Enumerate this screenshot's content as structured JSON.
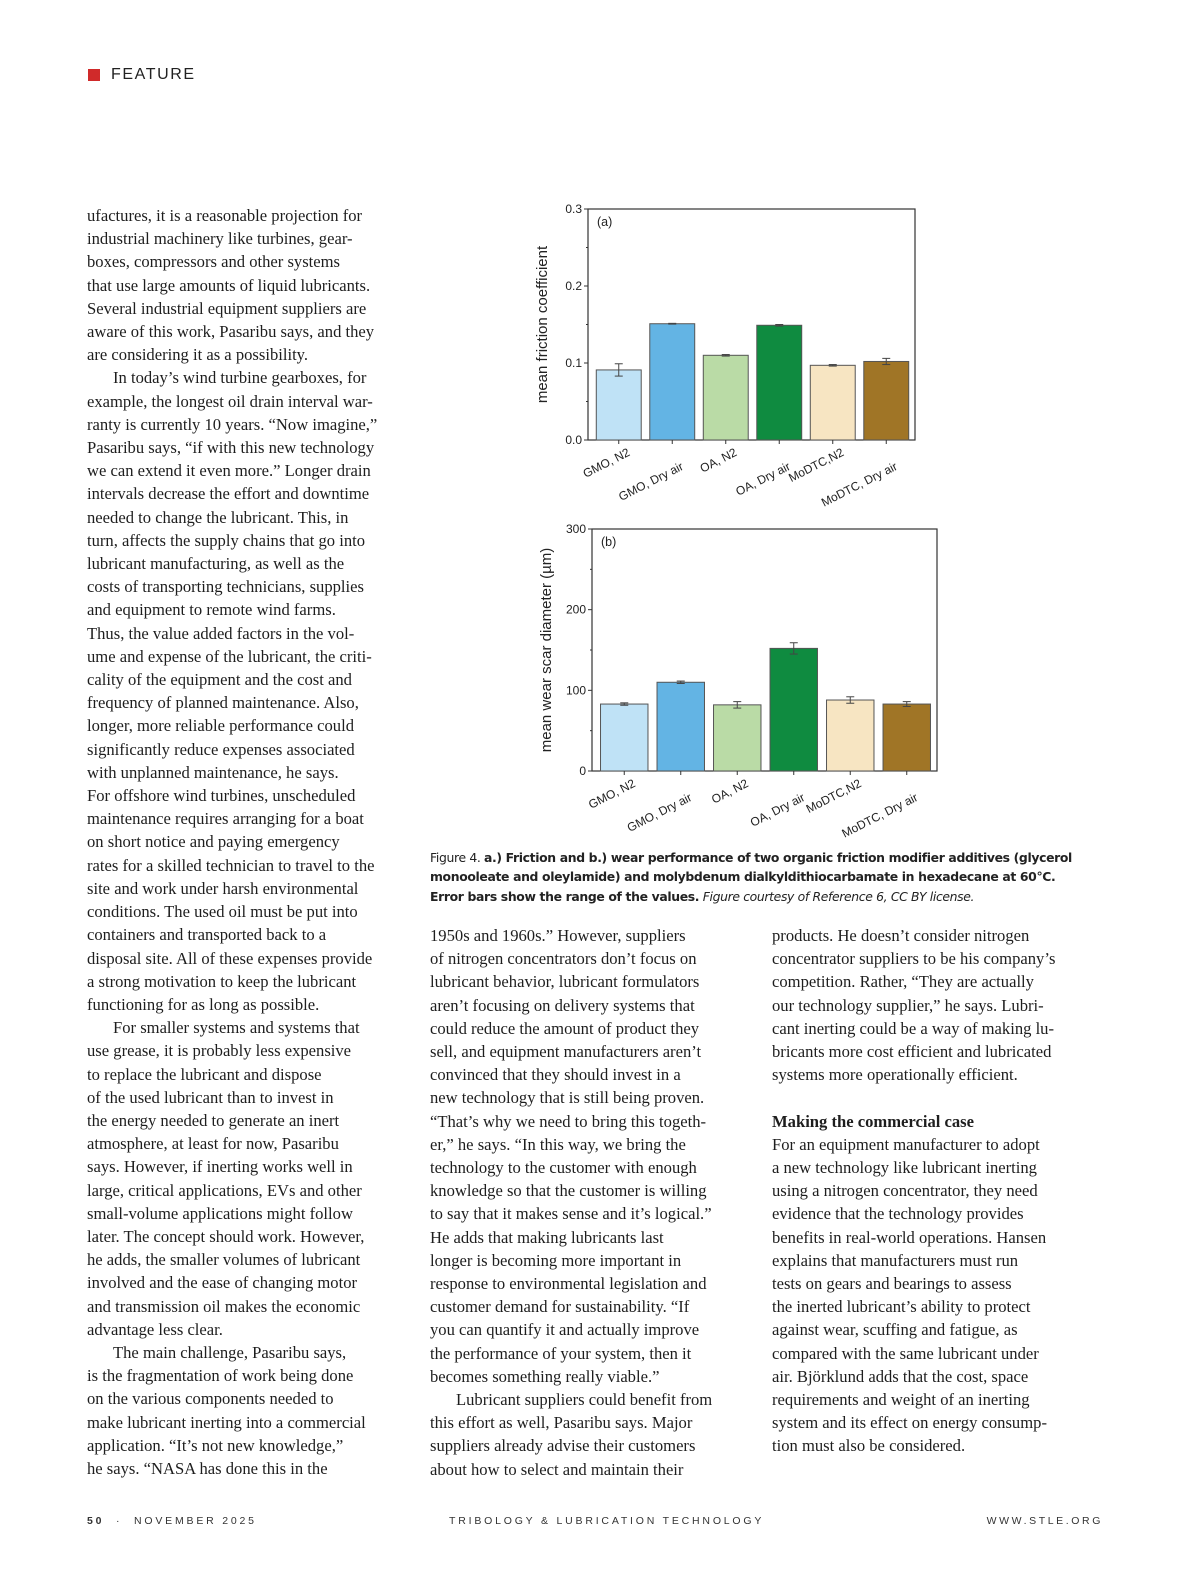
{
  "header": {
    "section": "FEATURE",
    "accent_color": "#d02a2a"
  },
  "columns": [
    {
      "blocks": [
        {
          "indent": false,
          "lines": [
            "ufactures, it is a reasonable projection for",
            "industrial machinery like turbines, gear-",
            "boxes, compressors and other systems",
            "that use large amounts of liquid lubricants.",
            "Several industrial equipment suppliers are",
            "aware of this work, Pasaribu says, and they",
            "are considering it as a possibility."
          ]
        },
        {
          "indent": true,
          "lines": [
            "In today’s wind turbine gearboxes, for",
            "example, the longest oil drain interval war-",
            "ranty is currently 10 years. “Now imagine,”",
            "Pasaribu says, “if with this new technology",
            "we can extend it even more.” Longer drain",
            "intervals decrease the effort and downtime",
            "needed to change the lubricant. This, in",
            "turn, affects the supply chains that go into",
            "lubricant manufacturing, as well as the",
            "costs of transporting technicians, supplies",
            "and equipment to remote wind farms.",
            "Thus, the value added factors in the vol-",
            "ume and expense of the lubricant, the criti-",
            "cality of the equipment and the cost and",
            "frequency of planned maintenance. Also,",
            "longer, more reliable performance could",
            "significantly reduce expenses associated",
            "with unplanned maintenance, he says.",
            "For offshore wind turbines, unscheduled",
            "maintenance requires arranging for a boat",
            "on short notice and paying emergency",
            "rates for a skilled technician to travel to the",
            "site and work under harsh environmental",
            "conditions. The used oil must be put into",
            "containers and transported back to a",
            "disposal site. All of these expenses provide",
            "a strong motivation to keep the lubricant",
            "functioning for as long as possible."
          ]
        },
        {
          "indent": true,
          "lines": [
            "For smaller systems and systems that",
            "use grease, it is probably less expensive",
            "to replace the lubricant and dispose",
            "of the used lubricant than to invest in",
            "the energy needed to generate an inert",
            "atmosphere, at least for now, Pasaribu",
            "says. However, if inerting works well in",
            "large, critical applications, EVs and other",
            "small-volume applications might follow",
            "later. The concept should work. However,",
            "he adds, the smaller volumes of lubricant",
            "involved and the ease of changing motor",
            "and transmission oil makes the economic",
            "advantage less clear."
          ]
        },
        {
          "indent": true,
          "lines": [
            "The main challenge, Pasaribu says,",
            "is the fragmentation of work being done",
            "on the various components needed to",
            "make lubricant inerting into a commercial",
            "application. “It’s not new knowledge,”",
            "he says. “NASA has done this in the"
          ]
        }
      ]
    },
    {
      "blocks": [
        {
          "indent": false,
          "lines": [
            "1950s and 1960s.” However, suppliers",
            "of nitrogen concentrators don’t focus on",
            "lubricant behavior, lubricant formulators",
            "aren’t focusing on delivery systems that",
            "could reduce the amount of product they",
            "sell, and equipment manufacturers aren’t",
            "convinced that they should invest in a",
            "new technology that is still being proven.",
            "“That’s why we need to bring this togeth-",
            "er,” he says. “In this way, we bring the",
            "technology to the customer with enough",
            "knowledge so that the customer is willing",
            "to say that it makes sense and it’s logical.”",
            "He adds that making lubricants last",
            "longer is becoming more important in",
            "response to environmental legislation and",
            "customer demand for sustainability. “If",
            "you can quantify it and actually improve",
            "the performance of your system, then it",
            "becomes something really viable.”"
          ]
        },
        {
          "indent": true,
          "lines": [
            "Lubricant suppliers could benefit from",
            "this effort as well, Pasaribu says. Major",
            "suppliers already advise their customers",
            "about how to select and maintain their"
          ]
        }
      ]
    },
    {
      "blocks": [
        {
          "indent": false,
          "lines": [
            "products. He doesn’t consider nitrogen",
            "concentrator suppliers to be his company’s",
            "competition. Rather, “They are actually",
            "our technology supplier,” he says. Lubri-",
            "cant inerting could be a way of making lu-",
            "bricants more cost efficient and lubricated",
            "systems more operationally efficient."
          ]
        },
        {
          "indent": false,
          "gap": true,
          "heading": "Making the commercial case",
          "lines": [
            "For an equipment manufacturer to adopt",
            "a new technology like lubricant inerting",
            "using a nitrogen concentrator, they need",
            "evidence that the technology provides",
            "benefits in real-world operations. Hansen",
            "explains that manufacturers must run",
            "tests on gears and bearings to assess",
            "the inerted lubricant’s ability to protect",
            "against wear, scuffing and fatigue, as",
            "compared with the same lubricant under",
            "air. Björklund adds that the cost, space",
            "requirements and weight of an inerting",
            "system and its effect on energy consump-",
            "tion must also be considered."
          ]
        }
      ]
    }
  ],
  "caption": {
    "label": "Figure 4. ",
    "bold": "a.) Friction and b.) wear performance of two organic friction modifier additives (glycerol monooleate and oleylamide) and molybdenum dialkyldithiocarbamate in hexadecane at 60°C. Error bars show the range of the values.",
    "italic": " Figure courtesy of Reference 6, CC BY license."
  },
  "footer": {
    "page": "50",
    "separator": "·",
    "issue": "NOVEMBER 2025",
    "magazine": "TRIBOLOGY & LUBRICATION TECHNOLOGY",
    "website": "WWW.STLE.ORG"
  },
  "chart_data": [
    {
      "type": "bar",
      "panel": "(a)",
      "categories": [
        "GMO, N2",
        "GMO, Dry air",
        "OA, N2",
        "OA, Dry air",
        "MoDTC,N2",
        "MoDTC, Dry air"
      ],
      "values": [
        0.091,
        0.151,
        0.11,
        0.149,
        0.097,
        0.102
      ],
      "errors": [
        0.008,
        0.0005,
        0.001,
        0.001,
        0.001,
        0.004
      ],
      "colors": [
        "#bfe2f6",
        "#63b4e4",
        "#badba6",
        "#0f8b40",
        "#f7e5c2",
        "#a07526"
      ],
      "ylabel": "mean friction coefficient",
      "xlabel": "",
      "ylim": [
        0,
        0.3
      ],
      "yticks": [
        0.0,
        0.1,
        0.2,
        0.3
      ],
      "ytick_labels": [
        "0.0",
        "0.1",
        "0.2",
        "0.3"
      ],
      "grid": false
    },
    {
      "type": "bar",
      "panel": "(b)",
      "categories": [
        "GMO, N2",
        "GMO, Dry air",
        "OA, N2",
        "OA, Dry air",
        "MoDTC,N2",
        "MoDTC, Dry air"
      ],
      "values": [
        83,
        110,
        82,
        152,
        88,
        83
      ],
      "errors": [
        1.5,
        1.5,
        4,
        7,
        4,
        3
      ],
      "colors": [
        "#bfe2f6",
        "#63b4e4",
        "#badba6",
        "#0f8b40",
        "#f7e5c2",
        "#a07526"
      ],
      "ylabel": "mean wear scar diameter (µm)",
      "xlabel": "",
      "ylim": [
        0,
        300
      ],
      "yticks": [
        0,
        100,
        200,
        300
      ],
      "ytick_labels": [
        "0",
        "100",
        "200",
        "300"
      ],
      "grid": false
    }
  ]
}
